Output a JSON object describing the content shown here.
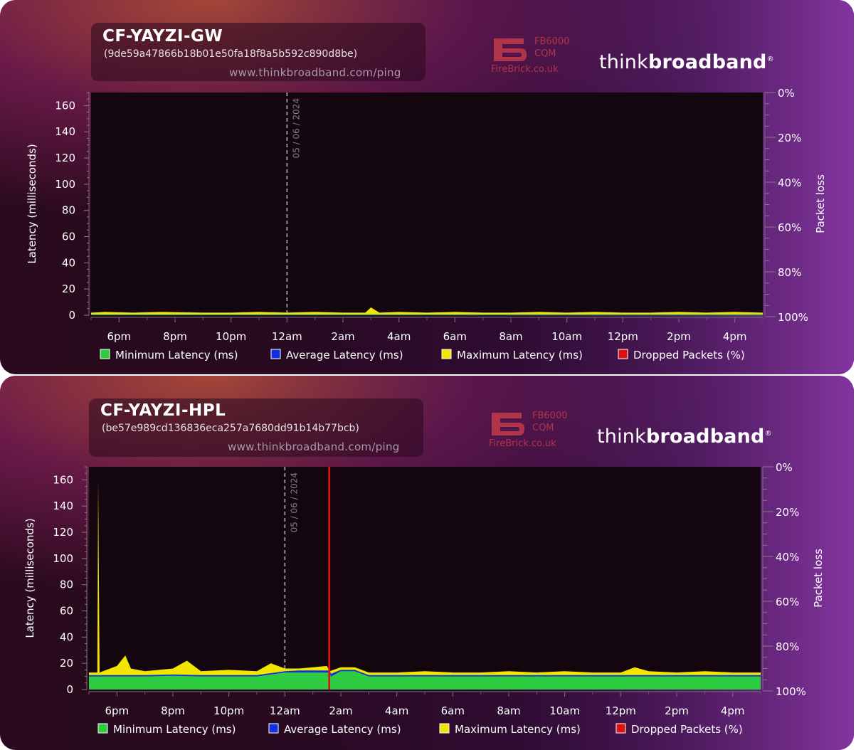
{
  "colors": {
    "min_latency": "#2ecc40",
    "avg_latency": "#1030e0",
    "max_latency": "#f2e600",
    "dropped": "#e01010",
    "plot_bg": "#14060e",
    "axis_text": "#ffffff"
  },
  "charts": [
    {
      "host": "CF-YAYZI-GW",
      "hash": "(9de59a47866b18b01e50fa18f8a5b592c890d8be)",
      "url": "www.thinkbroadband.com/ping",
      "sponsor_model": "FB6000",
      "sponsor_series": "CQM",
      "sponsor_site": "FireBrick.co.uk",
      "brand_a": "think",
      "brand_b": "broadband",
      "brand_mark": "®"
    },
    {
      "host": "CF-YAYZI-HPL",
      "hash": "(be57e989cd136836eca257a7680dd91b14b77bcb)",
      "url": "www.thinkbroadband.com/ping",
      "sponsor_model": "FB6000",
      "sponsor_series": "CQM",
      "sponsor_site": "FireBrick.co.uk",
      "brand_a": "think",
      "brand_b": "broadband",
      "brand_mark": "®"
    }
  ],
  "chart_data": [
    {
      "type": "area",
      "ylabel": "Latency (milliseconds)",
      "y2label": "Packet loss",
      "ylim": [
        0,
        170
      ],
      "yticks": [
        0,
        20,
        40,
        60,
        80,
        100,
        120,
        140,
        160
      ],
      "y2ticks": [
        "0%",
        "20%",
        "40%",
        "60%",
        "80%",
        "100%"
      ],
      "xticks": [
        "6pm",
        "8pm",
        "10pm",
        "12am",
        "2am",
        "4am",
        "6am",
        "8am",
        "10am",
        "12pm",
        "2pm",
        "4pm"
      ],
      "x_range_hours": [
        17.0,
        41.0
      ],
      "date_marker": {
        "x": 24.0,
        "label": "05 / 06 / 2024"
      },
      "legend": [
        "Minimum Latency (ms)",
        "Average Latency (ms)",
        "Maximum Latency (ms)",
        "Dropped Packets (%)"
      ],
      "series": [
        {
          "name": "Minimum Latency (ms)",
          "x": [
            17,
            41
          ],
          "values": [
            0.5,
            0.5
          ]
        },
        {
          "name": "Average Latency (ms)",
          "x": [
            17,
            41
          ],
          "values": [
            0.7,
            0.7
          ]
        },
        {
          "name": "Maximum Latency (ms)",
          "x": [
            17,
            17.5,
            18.5,
            19.5,
            21,
            22,
            23,
            24,
            25,
            26,
            26.8,
            27,
            27.3,
            28,
            29,
            30,
            31,
            32,
            33,
            34,
            35,
            36,
            37,
            38,
            39,
            40,
            41
          ],
          "values": [
            2,
            2.5,
            2,
            2.5,
            2,
            2,
            2.5,
            2,
            2.5,
            2,
            2,
            6,
            2,
            2.5,
            2,
            2.5,
            2,
            2,
            2.5,
            2,
            2.5,
            2,
            2,
            2.5,
            2,
            2.5,
            2
          ]
        },
        {
          "name": "Dropped Packets (%)",
          "x": [],
          "values": []
        }
      ]
    },
    {
      "type": "area",
      "ylabel": "Latency (milliseconds)",
      "y2label": "Packet loss",
      "ylim": [
        0,
        170
      ],
      "yticks": [
        0,
        20,
        40,
        60,
        80,
        100,
        120,
        140,
        160
      ],
      "y2ticks": [
        "0%",
        "20%",
        "40%",
        "60%",
        "80%",
        "100%"
      ],
      "xticks": [
        "6pm",
        "8pm",
        "10pm",
        "12am",
        "2am",
        "4am",
        "6am",
        "8am",
        "10am",
        "12pm",
        "2pm",
        "4pm"
      ],
      "x_range_hours": [
        17.0,
        41.0
      ],
      "date_marker": {
        "x": 24.0,
        "label": "05 / 06 / 2024"
      },
      "legend": [
        "Minimum Latency (ms)",
        "Average Latency (ms)",
        "Maximum Latency (ms)",
        "Dropped Packets (%)"
      ],
      "series": [
        {
          "name": "Minimum Latency (ms)",
          "x": [
            17,
            18,
            19,
            20,
            21,
            22,
            23,
            24,
            24.5,
            25,
            25.6,
            25.65,
            26,
            26.5,
            27,
            28,
            29,
            30,
            31,
            32,
            33,
            34,
            35,
            36,
            37,
            38,
            39,
            40,
            41
          ],
          "values": [
            10,
            10,
            10,
            10.5,
            10,
            10,
            10,
            13,
            13,
            13,
            13,
            10,
            14,
            14,
            10,
            10,
            10,
            10,
            10,
            10,
            10,
            10,
            10,
            10,
            10,
            10,
            10,
            10,
            10
          ]
        },
        {
          "name": "Average Latency (ms)",
          "x": [
            17,
            18,
            19,
            20,
            21,
            22,
            23,
            24,
            24.5,
            25,
            25.6,
            25.65,
            26,
            26.5,
            27,
            28,
            29,
            30,
            31,
            32,
            33,
            34,
            35,
            36,
            37,
            38,
            39,
            40,
            41
          ],
          "values": [
            11,
            11,
            11,
            11.5,
            11,
            11,
            11,
            14,
            14.5,
            14.5,
            14.5,
            12,
            15,
            15,
            11,
            11,
            11,
            11,
            11,
            11,
            11,
            11,
            11,
            11,
            11,
            11,
            11,
            11,
            11
          ]
        },
        {
          "name": "Maximum Latency (ms)",
          "x": [
            17,
            17.3,
            17.33,
            17.38,
            17.5,
            18,
            18.3,
            18.5,
            19,
            20,
            20.5,
            21,
            22,
            23,
            23.5,
            24,
            24.5,
            25,
            25.5,
            25.6,
            26,
            26.5,
            27,
            28,
            29,
            30,
            31,
            32,
            33,
            34,
            35,
            36,
            36.5,
            37,
            38,
            39,
            40,
            41
          ],
          "values": [
            13,
            13,
            160,
            13,
            14,
            18,
            26,
            16,
            14,
            16,
            22,
            14,
            15,
            14,
            20,
            16,
            16,
            17,
            18,
            14,
            17,
            17,
            13,
            13,
            14,
            13,
            13,
            14,
            13,
            14,
            13,
            13,
            17,
            14,
            13,
            14,
            13,
            13
          ]
        },
        {
          "name": "Dropped Packets (%)",
          "x": [
            25.55,
            25.62
          ],
          "values": [
            100,
            100
          ]
        }
      ]
    }
  ]
}
